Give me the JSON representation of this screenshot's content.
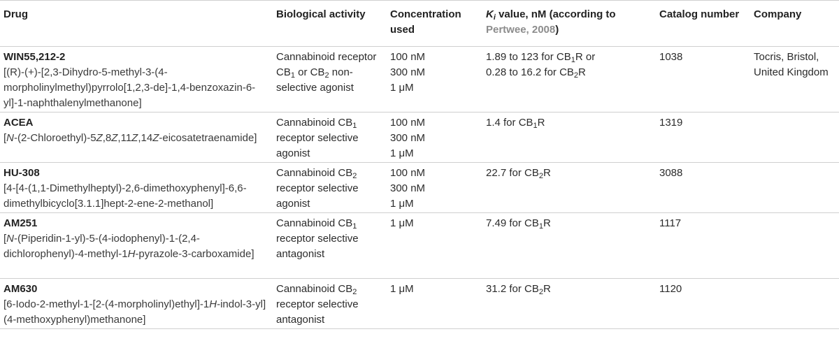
{
  "headers": {
    "drug": "Drug",
    "activity": "Biological activity",
    "concentration": "Concentration used",
    "ki_prefix": "K",
    "ki_sub": "i",
    "ki_mid": " value, nM (according to ",
    "ki_ref": "Pertwee, 2008",
    "ki_end": ")",
    "catalog": "Catalog number",
    "company": "Company"
  },
  "rows": [
    {
      "name": "WIN55,212-2",
      "chem": "[(R)-(+)-[2,3-Dihydro-5-methyl-3-(4-morpholinylmethyl)pyrrolo[1,2,3-de]-1,4-benzoxazin-6-yl]-1-naphthalenylmethanone]",
      "activity_a": "Cannabinoid receptor CB",
      "activity_sub": "1",
      "activity_b": " or CB",
      "activity_sub2": "2",
      "activity_c": " non-selective agonist",
      "conc": [
        "100 nM",
        "300 nM",
        "1 μM"
      ],
      "ki_1a": "1.89 to 123 for CB",
      "ki_1sub": "1",
      "ki_1b": "R or",
      "ki_2a": "0.28 to 16.2 for CB",
      "ki_2sub": "2",
      "ki_2b": "R",
      "catalog": "1038",
      "company": "Tocris, Bristol, United Kingdom"
    },
    {
      "name": "ACEA",
      "chem_1": "[",
      "chem_2": "N",
      "chem_3": "-(2-Chloroethyl)-5",
      "chem_4": "Z",
      "chem_5": ",8",
      "chem_6": "Z",
      "chem_7": ",11",
      "chem_8": "Z",
      "chem_9": ",14",
      "chem_10": "Z",
      "chem_11": "-eicosatetraenamide]",
      "activity_a": "Cannabinoid CB",
      "activity_sub": "1",
      "activity_b": " receptor selective agonist",
      "conc": [
        "100 nM",
        "300 nM",
        "1 μM"
      ],
      "ki_a": "1.4 for CB",
      "ki_sub": "1",
      "ki_b": "R",
      "catalog": "1319"
    },
    {
      "name": "HU-308",
      "chem": "[4-[4-(1,1-Dimethylheptyl)-2,6-dimethoxyphenyl]-6,6-dimethylbicyclo[3.1.1]hept-2-ene-2-methanol]",
      "activity_a": "Cannabinoid CB",
      "activity_sub": "2",
      "activity_b": " receptor selective agonist",
      "conc": [
        "100 nM",
        "300 nM",
        "1 μM"
      ],
      "ki_a": "22.7 for CB",
      "ki_sub": "2",
      "ki_b": "R",
      "catalog": "3088"
    },
    {
      "name": "AM251",
      "chem_1": "[",
      "chem_2": "N",
      "chem_3": "-(Piperidin-1-yl)-5-(4-iodophenyl)-1-(2,4-dichlorophenyl)-4-methyl-1",
      "chem_4": "H",
      "chem_5": "-pyrazole-3-carboxamide]",
      "activity_a": "Cannabinoid CB",
      "activity_sub": "1",
      "activity_b": " receptor selective antagonist",
      "conc": [
        "1 μM"
      ],
      "ki_a": "7.49 for CB",
      "ki_sub": "1",
      "ki_b": "R",
      "catalog": "1117"
    },
    {
      "name": "AM630",
      "chem_1": "[6-Iodo-2-methyl-1-[2-(4-morpholinyl)ethyl]-1",
      "chem_2": "H",
      "chem_3": "-indol-3-yl](4-methoxyphenyl)methanone]",
      "activity_a": "Cannabinoid CB",
      "activity_sub": "2",
      "activity_b": " receptor selective antagonist",
      "conc": [
        "1 μM"
      ],
      "ki_a": "31.2 for CB",
      "ki_sub": "2",
      "ki_b": "R",
      "catalog": "1120"
    }
  ]
}
